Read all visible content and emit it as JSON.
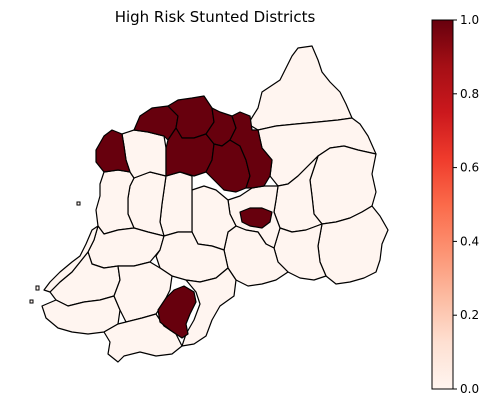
{
  "title": "High Risk Stunted Districts",
  "colorbar": {
    "colormap": "Reds",
    "min": 0.0,
    "max": 1.0,
    "ticks": [
      "0.0",
      "0.2",
      "0.4",
      "0.6",
      "0.8",
      "1.0"
    ]
  },
  "colors": {
    "low": "#fff5f0",
    "high": "#67000d",
    "border": "#000000"
  },
  "districts": [
    {
      "id": "d01",
      "value": 0
    },
    {
      "id": "d02",
      "value": 0
    },
    {
      "id": "d03",
      "value": 0
    },
    {
      "id": "d04",
      "value": 0
    },
    {
      "id": "d05",
      "value": 0
    },
    {
      "id": "d06",
      "value": 0
    },
    {
      "id": "d07",
      "value": 0
    },
    {
      "id": "d08",
      "value": 1
    },
    {
      "id": "d09",
      "value": 0
    },
    {
      "id": "d10",
      "value": 0
    },
    {
      "id": "d11",
      "value": 0
    },
    {
      "id": "d12",
      "value": 0
    },
    {
      "id": "d13",
      "value": 0
    },
    {
      "id": "d14",
      "value": 0
    },
    {
      "id": "d15",
      "value": 1
    },
    {
      "id": "d16",
      "value": 0
    },
    {
      "id": "d17",
      "value": 0
    },
    {
      "id": "d18",
      "value": 1
    },
    {
      "id": "d19",
      "value": 1
    },
    {
      "id": "d20",
      "value": 1
    },
    {
      "id": "d21",
      "value": 1
    },
    {
      "id": "d22",
      "value": 1
    },
    {
      "id": "d23",
      "value": 1
    },
    {
      "id": "d24",
      "value": 0
    },
    {
      "id": "d25",
      "value": 0
    },
    {
      "id": "d26",
      "value": 0
    },
    {
      "id": "d27",
      "value": 0
    },
    {
      "id": "d28",
      "value": 0
    },
    {
      "id": "d29",
      "value": 0
    },
    {
      "id": "d30",
      "value": 1
    }
  ]
}
